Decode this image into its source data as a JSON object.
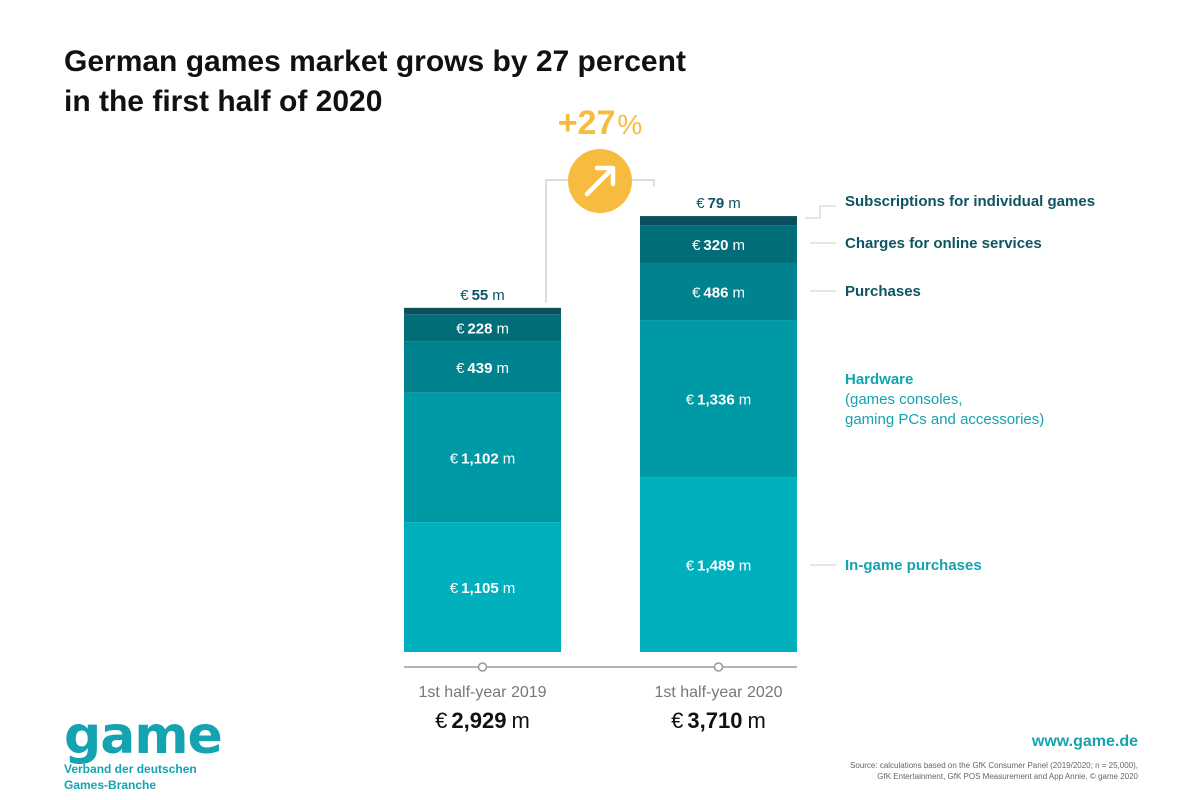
{
  "title_lines": [
    "German games market grows by 27 percent",
    "in the first half of 2020"
  ],
  "growth": {
    "number": "+27",
    "unit": "%"
  },
  "colors": {
    "ingame": "#00b1bd",
    "hardware": "#0099a6",
    "purchases": "#00838f",
    "online": "#006d79",
    "subs": "#0d4e5c",
    "accent": "#f7bc3f",
    "label_dark": "#0d5563",
    "label_teal": "#14a3b0"
  },
  "chart_data": {
    "type": "bar",
    "stacked": true,
    "categories": [
      "1st half-year 2019",
      "1st half-year 2020"
    ],
    "category_totals": [
      "2,929",
      "3,710"
    ],
    "currency_prefix": "€",
    "unit_suffix": "m",
    "series": [
      {
        "key": "ingame",
        "name": "In-game purchases",
        "values": [
          1105,
          1489
        ],
        "labels": [
          "1,105",
          "1,489"
        ]
      },
      {
        "key": "hardware",
        "name": "Hardware",
        "sub": [
          "(games consoles,",
          "gaming PCs and accessories)"
        ],
        "values": [
          1102,
          1336
        ],
        "labels": [
          "1,102",
          "1,336"
        ]
      },
      {
        "key": "purchases",
        "name": "Purchases",
        "values": [
          439,
          486
        ],
        "labels": [
          "439",
          "486"
        ]
      },
      {
        "key": "online",
        "name": "Charges for online services",
        "values": [
          228,
          320
        ],
        "labels": [
          "228",
          "320"
        ]
      },
      {
        "key": "subs",
        "name": "Subscriptions for individual games",
        "values": [
          55,
          79
        ],
        "labels": [
          "55",
          "79"
        ]
      }
    ],
    "legend_position": "right",
    "grid": false
  },
  "logo": {
    "word": "game",
    "line1": "Verband der deutschen",
    "line2": "Games-Branche"
  },
  "website": "www.game.de",
  "source_lines": [
    "Source: calculations based on the GfK Consumer Panel (2019/2020; n = 25,000),",
    "GfK Entertainment, GfK POS Measurement and App Annie. © game 2020"
  ]
}
